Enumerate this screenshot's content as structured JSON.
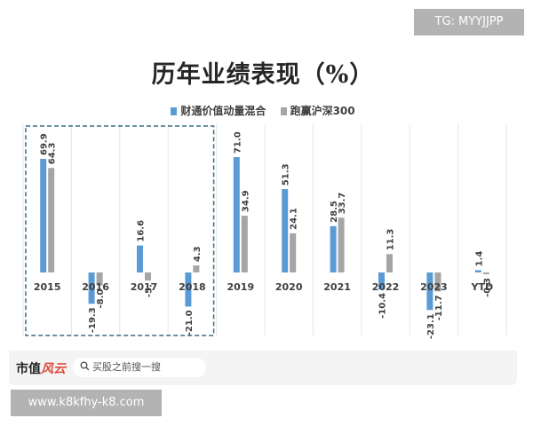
{
  "watermark_top": "TG: MYYJJPP",
  "watermark_bottom": "www.k8kfhy-k8.com",
  "footer": {
    "logo_text": "市值",
    "logo_accent": "风云",
    "search_placeholder": "买股之前搜一搜"
  },
  "icons": {
    "search": "search-icon"
  },
  "colors": {
    "series1": "#5b9bd5",
    "series2": "#a5a5a5",
    "highlight_box": "#3a6b88"
  },
  "chart_data": {
    "type": "bar",
    "title": "历年业绩表现（%）",
    "xlabel": "",
    "ylabel": "",
    "categories": [
      "2015",
      "2016",
      "2017",
      "2018",
      "2019",
      "2020",
      "2021",
      "2022",
      "2023",
      "YTD"
    ],
    "series": [
      {
        "name": "财通价值动量混合",
        "values": [
          69.9,
          -19.3,
          16.6,
          -21.0,
          71.0,
          51.3,
          28.5,
          -10.4,
          -23.1,
          1.4
        ],
        "labels": [
          "69.9",
          "-19.3",
          "16.6",
          "-21.0",
          "71.0",
          "51.3",
          "28.5",
          "-10.4",
          "-23.1",
          "1.4"
        ]
      },
      {
        "name": "跑赢沪深300",
        "values": [
          64.3,
          -8.0,
          -5.0,
          4.3,
          34.9,
          24.1,
          33.7,
          11.3,
          -11.7,
          -0.3
        ],
        "labels": [
          "64.3",
          "-8.0",
          "-5.",
          "4.3",
          "34.9",
          "24.1",
          "33.7",
          "11.3",
          "-11.7",
          "-0.3"
        ]
      }
    ],
    "ylim": [
      -25,
      75
    ],
    "grid": "vertical",
    "legend": "top-center",
    "highlight": [
      "2015",
      "2018"
    ]
  }
}
